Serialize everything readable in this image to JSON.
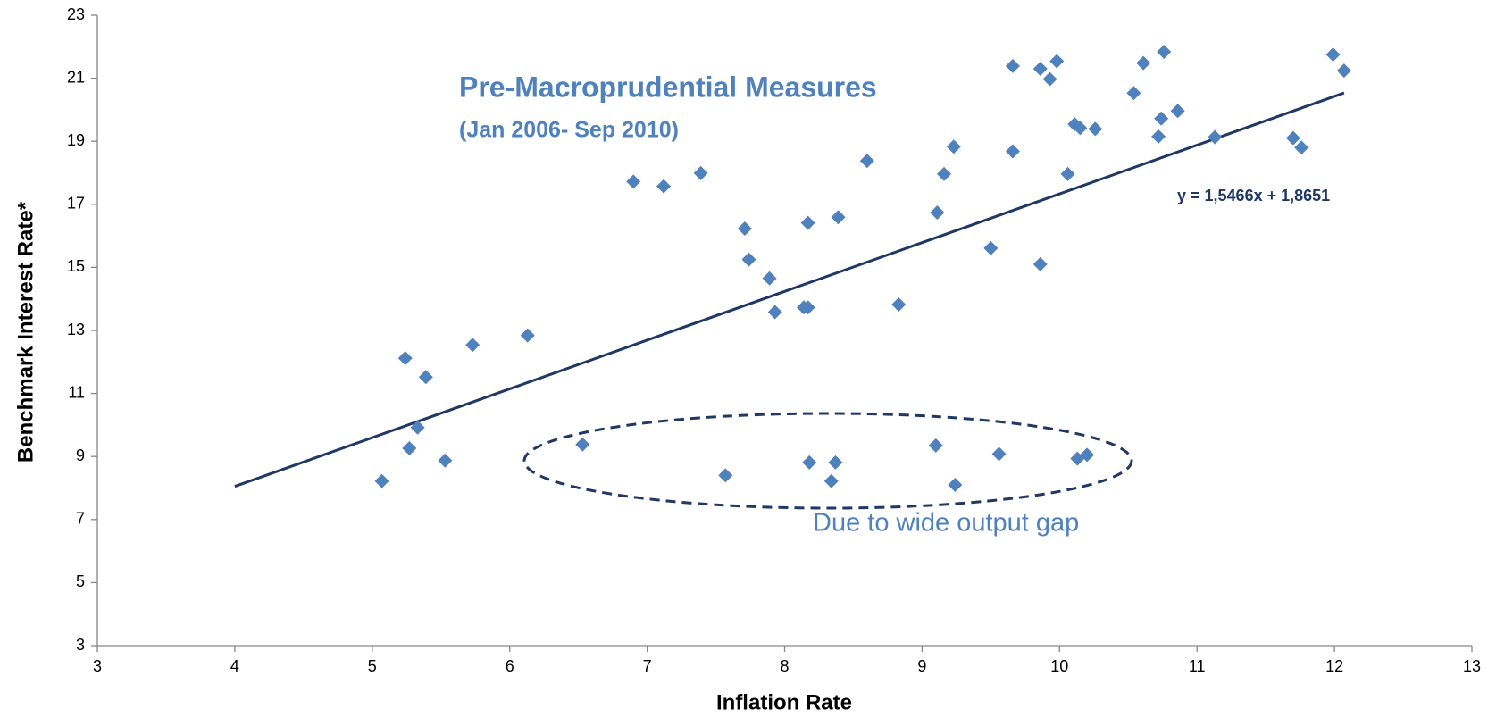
{
  "chart_data": {
    "type": "scatter",
    "title": "Pre-Macroprudential Measures",
    "subtitle": "(Jan 2006- Sep 2010)",
    "annotation": "Due to wide output gap",
    "xlabel": "Inflation Rate",
    "ylabel": "Benchmark Interest Rate*",
    "color": "#4f81bd",
    "x": [
      5.07,
      5.24,
      5.27,
      5.33,
      5.39,
      5.53,
      5.73,
      6.13,
      6.53,
      6.9,
      7.12,
      7.39,
      7.57,
      7.71,
      7.74,
      7.89,
      7.93,
      8.14,
      8.17,
      8.17,
      8.18,
      8.34,
      8.37,
      8.39,
      8.6,
      8.83,
      9.1,
      9.11,
      9.16,
      9.23,
      9.24,
      9.5,
      9.56,
      9.66,
      9.66,
      9.86,
      9.86,
      9.93,
      9.98,
      10.06,
      10.11,
      10.13,
      10.15,
      10.2,
      10.26,
      10.54,
      10.61,
      10.72,
      10.74,
      10.76,
      10.86,
      11.13,
      11.7,
      11.76,
      11.99,
      12.07
    ],
    "values": [
      8.22,
      12.12,
      9.26,
      9.92,
      11.52,
      8.87,
      12.54,
      12.84,
      9.38,
      17.72,
      17.57,
      17.99,
      8.4,
      16.23,
      15.25,
      14.65,
      13.58,
      13.73,
      13.73,
      16.41,
      8.81,
      8.22,
      8.81,
      16.59,
      18.38,
      13.82,
      9.35,
      16.74,
      17.96,
      18.83,
      8.1,
      15.61,
      9.08,
      21.39,
      18.68,
      15.1,
      21.3,
      20.97,
      21.54,
      17.96,
      19.54,
      8.93,
      19.42,
      9.05,
      19.39,
      20.53,
      21.48,
      19.15,
      19.72,
      21.84,
      19.96,
      19.13,
      19.1,
      18.8,
      21.75,
      21.24
    ],
    "trendline": {
      "slope": 1.5466,
      "intercept": 1.8651,
      "x_range": [
        4,
        12.07
      ],
      "label": "y = 1,5466x + 1,8651",
      "color": "#1f3864"
    },
    "xlim": [
      3,
      13
    ],
    "xticks": [
      3,
      4,
      5,
      6,
      7,
      8,
      9,
      10,
      11,
      12,
      13
    ],
    "ylim": [
      3,
      23
    ],
    "yticks": [
      3,
      5,
      7,
      9,
      11,
      13,
      15,
      17,
      19,
      21,
      23
    ],
    "grid": false
  }
}
